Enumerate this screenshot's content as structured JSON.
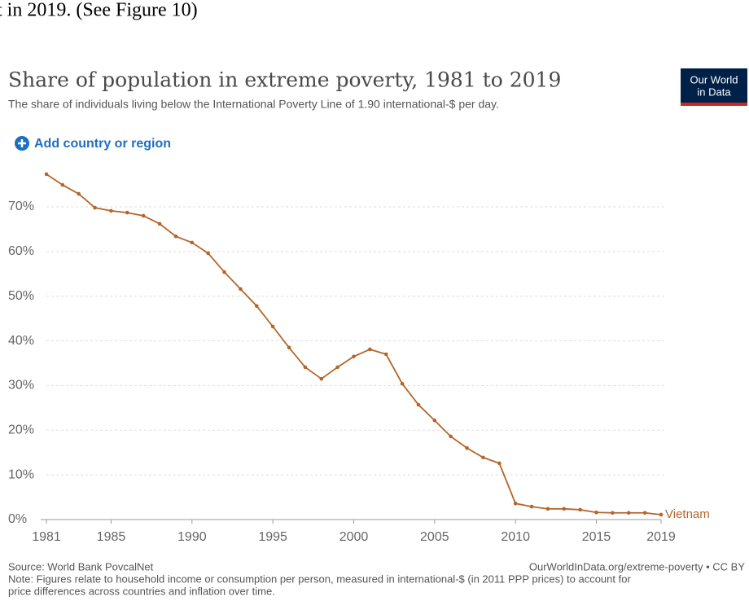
{
  "context_text": "t in 2019. (See Figure 10)",
  "logo_lines": [
    "Our World",
    "in Data"
  ],
  "add_button": "Add country or region",
  "source": "Source: World Bank PovcalNet",
  "url": "OurWorldInData.org/extreme-poverty • CC BY",
  "note_lines": [
    "Note: Figures relate to household income or consumption per person, measured in international-$ (in 2011 PPP prices) to account for",
    "price differences across countries and inflation over time."
  ],
  "chart_data": {
    "type": "line",
    "title": "Share of population in extreme poverty, 1981 to 2019",
    "subtitle": "The share of individuals living below the International Poverty Line of 1.90 international-$ per day.",
    "x": [
      1981,
      1982,
      1983,
      1984,
      1985,
      1986,
      1987,
      1988,
      1989,
      1990,
      1991,
      1992,
      1993,
      1994,
      1995,
      1996,
      1997,
      1998,
      1999,
      2000,
      2001,
      2002,
      2003,
      2004,
      2005,
      2006,
      2007,
      2008,
      2009,
      2010,
      2011,
      2012,
      2013,
      2014,
      2015,
      2016,
      2017,
      2018,
      2019
    ],
    "series": [
      {
        "name": "Vietnam",
        "color": "#b5652a",
        "values": [
          77.3,
          74.9,
          72.9,
          69.8,
          69.1,
          68.7,
          68.0,
          66.2,
          63.4,
          62.0,
          59.6,
          55.4,
          51.6,
          47.8,
          43.2,
          38.5,
          34.1,
          31.5,
          34.1,
          36.5,
          38.1,
          37.0,
          30.4,
          25.7,
          22.2,
          18.6,
          16.0,
          13.9,
          12.6,
          3.6,
          2.9,
          2.4,
          2.4,
          2.2,
          1.6,
          1.5,
          1.5,
          1.5,
          1.1
        ]
      }
    ],
    "xlim": [
      1981,
      2019
    ],
    "xticks": [
      1981,
      1985,
      1990,
      1995,
      2000,
      2005,
      2010,
      2015,
      2019
    ],
    "ylim": [
      0,
      79
    ],
    "yticks": [
      {
        "value": 0,
        "label": "0%"
      },
      {
        "value": 10,
        "label": "10%"
      },
      {
        "value": 20,
        "label": "20%"
      },
      {
        "value": 30,
        "label": "30%"
      },
      {
        "value": 40,
        "label": "40%"
      },
      {
        "value": 50,
        "label": "50%"
      },
      {
        "value": 60,
        "label": "60%"
      },
      {
        "value": 70,
        "label": "70%"
      }
    ],
    "grid": true
  }
}
